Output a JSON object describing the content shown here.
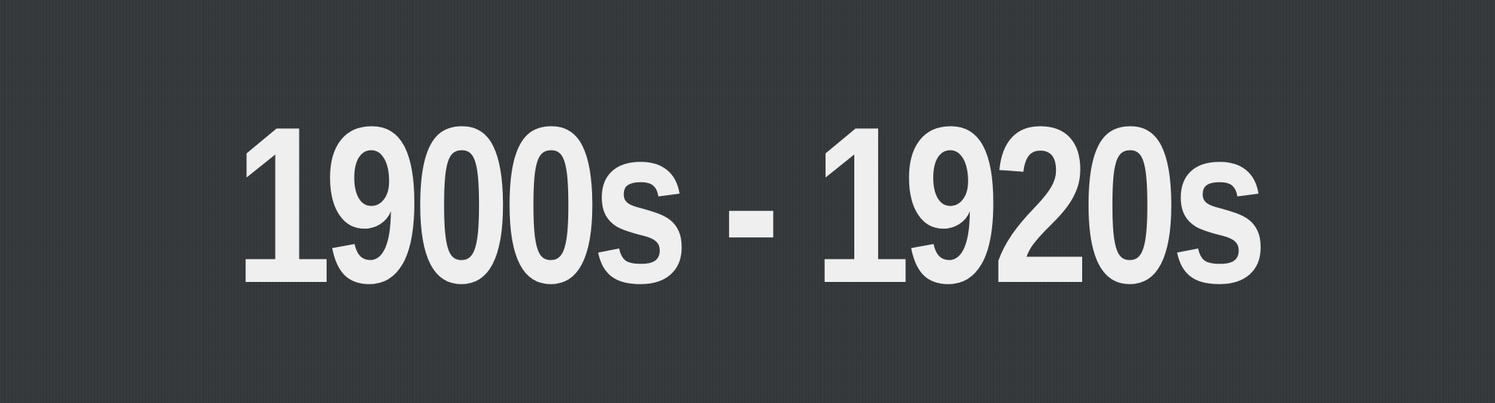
{
  "heading": {
    "text": "1900s - 1920s"
  },
  "colors": {
    "background": "#35393c",
    "text": "#efefef"
  }
}
